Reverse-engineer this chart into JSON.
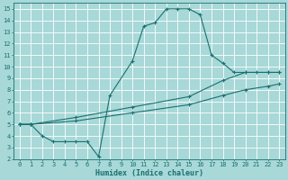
{
  "title": "",
  "xlabel": "Humidex (Indice chaleur)",
  "bg_color": "#a8d8d8",
  "grid_color": "#ffffff",
  "line_color": "#1a7070",
  "xlim": [
    -0.5,
    23.5
  ],
  "ylim": [
    2,
    15.5
  ],
  "xticks": [
    0,
    1,
    2,
    3,
    4,
    5,
    6,
    7,
    8,
    9,
    10,
    11,
    12,
    13,
    14,
    15,
    16,
    17,
    18,
    19,
    20,
    21,
    22,
    23
  ],
  "yticks": [
    2,
    3,
    4,
    5,
    6,
    7,
    8,
    9,
    10,
    11,
    12,
    13,
    14,
    15
  ],
  "line1_x": [
    0,
    1,
    2,
    3,
    4,
    5,
    6,
    7,
    8,
    10,
    11,
    12,
    13,
    14,
    15,
    16,
    17,
    18,
    19,
    20,
    21,
    22,
    23
  ],
  "line1_y": [
    5,
    5,
    4,
    3.5,
    3.5,
    3.5,
    3.5,
    2.2,
    7.5,
    10.5,
    13.5,
    13.8,
    15,
    15,
    15,
    14.5,
    11,
    10.3,
    9.5,
    9.5,
    9.5,
    9.5,
    9.5
  ],
  "line2_x": [
    0,
    1,
    5,
    10,
    15,
    18,
    20,
    22,
    23
  ],
  "line2_y": [
    5,
    5,
    5.3,
    6.0,
    6.7,
    7.5,
    8.0,
    8.3,
    8.5
  ],
  "line3_x": [
    0,
    1,
    5,
    10,
    15,
    18,
    20,
    22,
    23
  ],
  "line3_y": [
    5,
    5,
    5.6,
    6.5,
    7.4,
    8.8,
    9.5,
    9.5,
    9.5
  ],
  "tick_fontsize": 5,
  "xlabel_fontsize": 6
}
